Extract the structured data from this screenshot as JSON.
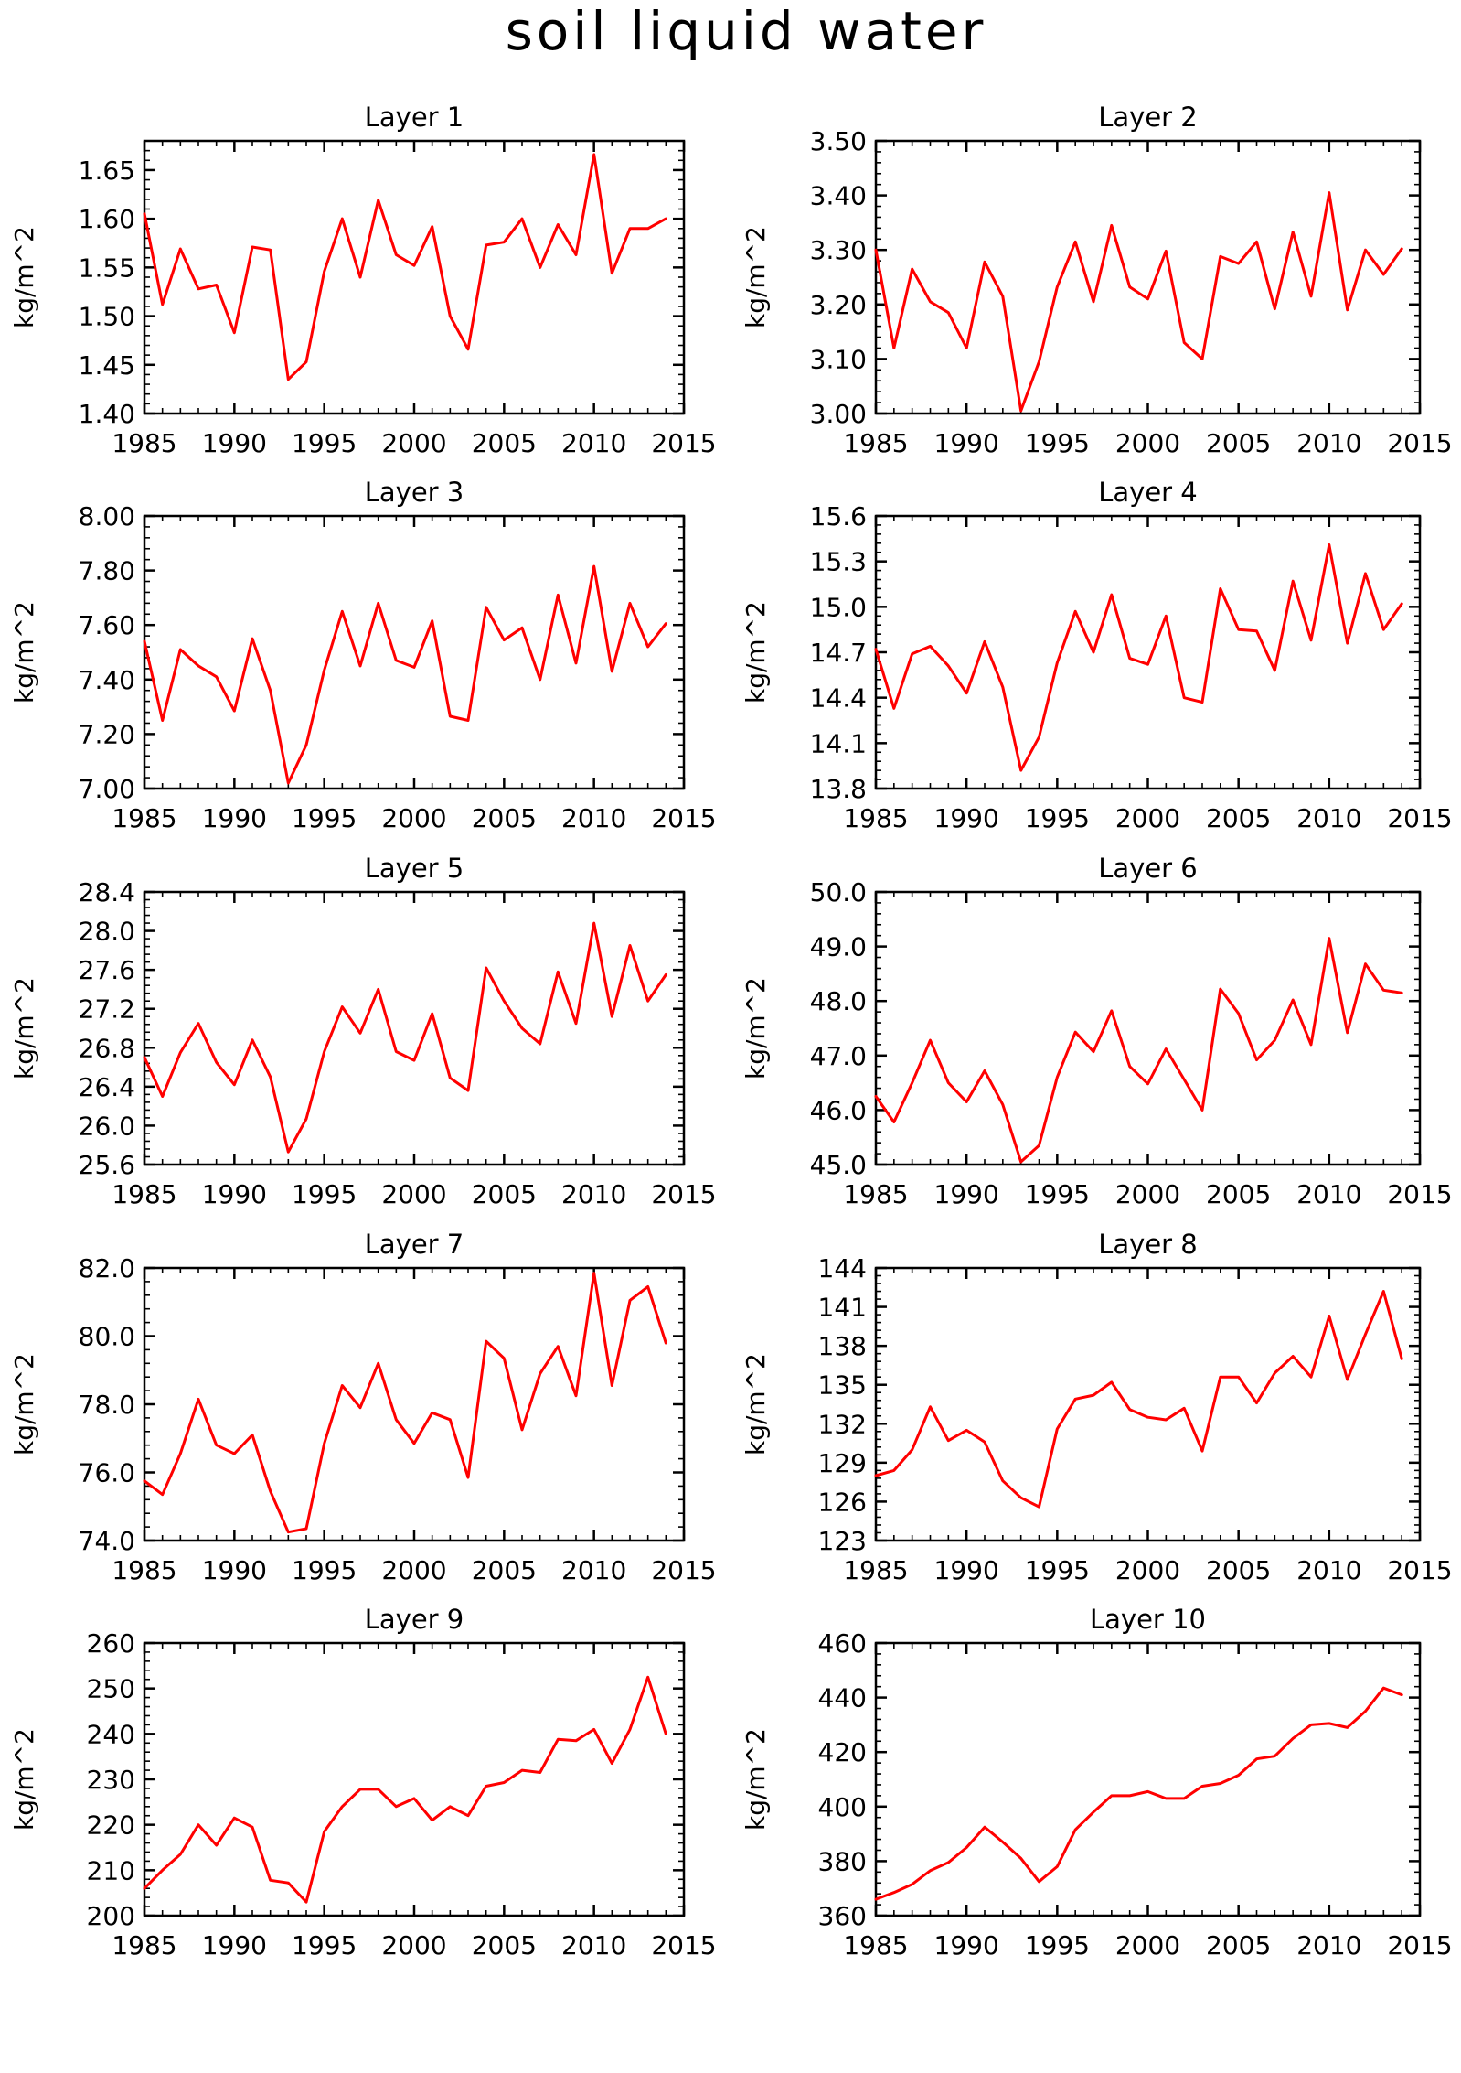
{
  "figure": {
    "title": "soil liquid water"
  },
  "chart_data": [
    {
      "type": "line",
      "title": "Layer 1",
      "ylabel": "kg/m^2",
      "xlim": [
        1985,
        2015
      ],
      "ylim": [
        1.4,
        1.68
      ],
      "xticks": [
        "1985",
        "1990",
        "1995",
        "2000",
        "2005",
        "2010",
        "2015"
      ],
      "yticks": [
        "1.40",
        "1.45",
        "1.50",
        "1.55",
        "1.60",
        "1.65"
      ],
      "x": [
        1985,
        1986,
        1987,
        1988,
        1989,
        1990,
        1991,
        1992,
        1993,
        1994,
        1995,
        1996,
        1997,
        1998,
        1999,
        2000,
        2001,
        2002,
        2003,
        2004,
        2005,
        2006,
        2007,
        2008,
        2009,
        2010,
        2011,
        2012,
        2013,
        2014
      ],
      "series": [
        {
          "values": [
            1.605,
            1.512,
            1.569,
            1.528,
            1.532,
            1.483,
            1.571,
            1.568,
            1.435,
            1.453,
            1.546,
            1.6,
            1.54,
            1.619,
            1.563,
            1.552,
            1.592,
            1.5,
            1.466,
            1.573,
            1.576,
            1.6,
            1.55,
            1.594,
            1.563,
            1.666,
            1.544,
            1.59,
            1.59,
            1.6
          ],
          "color": "#ff0000"
        }
      ]
    },
    {
      "type": "line",
      "title": "Layer 2",
      "ylabel": "kg/m^2",
      "xlim": [
        1985,
        2015
      ],
      "ylim": [
        3.0,
        3.5
      ],
      "xticks": [
        "1985",
        "1990",
        "1995",
        "2000",
        "2005",
        "2010",
        "2015"
      ],
      "yticks": [
        "3.00",
        "3.10",
        "3.20",
        "3.30",
        "3.40",
        "3.50"
      ],
      "x": [
        1985,
        1986,
        1987,
        1988,
        1989,
        1990,
        1991,
        1992,
        1993,
        1994,
        1995,
        1996,
        1997,
        1998,
        1999,
        2000,
        2001,
        2002,
        2003,
        2004,
        2005,
        2006,
        2007,
        2008,
        2009,
        2010,
        2011,
        2012,
        2013,
        2014
      ],
      "series": [
        {
          "values": [
            3.3,
            3.12,
            3.265,
            3.205,
            3.185,
            3.12,
            3.278,
            3.215,
            3.005,
            3.095,
            3.232,
            3.315,
            3.205,
            3.345,
            3.232,
            3.21,
            3.298,
            3.13,
            3.1,
            3.288,
            3.275,
            3.315,
            3.192,
            3.333,
            3.215,
            3.405,
            3.19,
            3.3,
            3.255,
            3.302
          ],
          "color": "#ff0000"
        }
      ]
    },
    {
      "type": "line",
      "title": "Layer 3",
      "ylabel": "kg/m^2",
      "xlim": [
        1985,
        2015
      ],
      "ylim": [
        7.0,
        8.0
      ],
      "xticks": [
        "1985",
        "1990",
        "1995",
        "2000",
        "2005",
        "2010",
        "2015"
      ],
      "yticks": [
        "7.00",
        "7.20",
        "7.40",
        "7.60",
        "7.80",
        "8.00"
      ],
      "x": [
        1985,
        1986,
        1987,
        1988,
        1989,
        1990,
        1991,
        1992,
        1993,
        1994,
        1995,
        1996,
        1997,
        1998,
        1999,
        2000,
        2001,
        2002,
        2003,
        2004,
        2005,
        2006,
        2007,
        2008,
        2009,
        2010,
        2011,
        2012,
        2013,
        2014
      ],
      "series": [
        {
          "values": [
            7.54,
            7.25,
            7.51,
            7.45,
            7.41,
            7.285,
            7.55,
            7.36,
            7.02,
            7.16,
            7.435,
            7.65,
            7.45,
            7.68,
            7.47,
            7.445,
            7.615,
            7.265,
            7.25,
            7.665,
            7.545,
            7.59,
            7.4,
            7.71,
            7.46,
            7.815,
            7.43,
            7.68,
            7.52,
            7.605
          ],
          "color": "#ff0000"
        }
      ]
    },
    {
      "type": "line",
      "title": "Layer 4",
      "ylabel": "kg/m^2",
      "xlim": [
        1985,
        2015
      ],
      "ylim": [
        13.8,
        15.6
      ],
      "xticks": [
        "1985",
        "1990",
        "1995",
        "2000",
        "2005",
        "2010",
        "2015"
      ],
      "yticks": [
        "13.8",
        "14.1",
        "14.4",
        "14.7",
        "15.0",
        "15.3",
        "15.6"
      ],
      "x": [
        1985,
        1986,
        1987,
        1988,
        1989,
        1990,
        1991,
        1992,
        1993,
        1994,
        1995,
        1996,
        1997,
        1998,
        1999,
        2000,
        2001,
        2002,
        2003,
        2004,
        2005,
        2006,
        2007,
        2008,
        2009,
        2010,
        2011,
        2012,
        2013,
        2014
      ],
      "series": [
        {
          "values": [
            14.72,
            14.33,
            14.69,
            14.74,
            14.61,
            14.43,
            14.77,
            14.47,
            13.92,
            14.14,
            14.63,
            14.97,
            14.7,
            15.08,
            14.66,
            14.62,
            14.94,
            14.4,
            14.37,
            15.12,
            14.85,
            14.84,
            14.58,
            15.17,
            14.78,
            15.41,
            14.76,
            15.22,
            14.85,
            15.02
          ],
          "color": "#ff0000"
        }
      ]
    },
    {
      "type": "line",
      "title": "Layer 5",
      "ylabel": "kg/m^2",
      "xlim": [
        1985,
        2015
      ],
      "ylim": [
        25.6,
        28.4
      ],
      "xticks": [
        "1985",
        "1990",
        "1995",
        "2000",
        "2005",
        "2010",
        "2015"
      ],
      "yticks": [
        "25.6",
        "26.0",
        "26.4",
        "26.8",
        "27.2",
        "27.6",
        "28.0",
        "28.4"
      ],
      "x": [
        1985,
        1986,
        1987,
        1988,
        1989,
        1990,
        1991,
        1992,
        1993,
        1994,
        1995,
        1996,
        1997,
        1998,
        1999,
        2000,
        2001,
        2002,
        2003,
        2004,
        2005,
        2006,
        2007,
        2008,
        2009,
        2010,
        2011,
        2012,
        2013,
        2014
      ],
      "series": [
        {
          "values": [
            26.7,
            26.3,
            26.75,
            27.05,
            26.65,
            26.42,
            26.88,
            26.5,
            25.73,
            26.07,
            26.76,
            27.22,
            26.95,
            27.4,
            26.76,
            26.67,
            27.15,
            26.49,
            26.36,
            27.62,
            27.28,
            27.0,
            26.84,
            27.58,
            27.05,
            28.08,
            27.12,
            27.85,
            27.28,
            27.55
          ],
          "color": "#ff0000"
        }
      ]
    },
    {
      "type": "line",
      "title": "Layer 6",
      "ylabel": "kg/m^2",
      "xlim": [
        1985,
        2015
      ],
      "ylim": [
        45.0,
        50.0
      ],
      "xticks": [
        "1985",
        "1990",
        "1995",
        "2000",
        "2005",
        "2010",
        "2015"
      ],
      "yticks": [
        "45.0",
        "46.0",
        "47.0",
        "48.0",
        "49.0",
        "50.0"
      ],
      "x": [
        1985,
        1986,
        1987,
        1988,
        1989,
        1990,
        1991,
        1992,
        1993,
        1994,
        1995,
        1996,
        1997,
        1998,
        1999,
        2000,
        2001,
        2002,
        2003,
        2004,
        2005,
        2006,
        2007,
        2008,
        2009,
        2010,
        2011,
        2012,
        2013,
        2014
      ],
      "series": [
        {
          "values": [
            46.25,
            45.78,
            46.5,
            47.28,
            46.5,
            46.15,
            46.72,
            46.1,
            45.05,
            45.35,
            46.6,
            47.43,
            47.07,
            47.82,
            46.8,
            46.48,
            47.12,
            46.56,
            46.0,
            48.22,
            47.77,
            46.92,
            47.28,
            48.02,
            47.2,
            49.15,
            47.42,
            48.68,
            48.2,
            48.15
          ],
          "color": "#ff0000"
        }
      ]
    },
    {
      "type": "line",
      "title": "Layer 7",
      "ylabel": "kg/m^2",
      "xlim": [
        1985,
        2015
      ],
      "ylim": [
        74.0,
        82.0
      ],
      "xticks": [
        "1985",
        "1990",
        "1995",
        "2000",
        "2005",
        "2010",
        "2015"
      ],
      "yticks": [
        "74.0",
        "76.0",
        "78.0",
        "80.0",
        "82.0"
      ],
      "x": [
        1985,
        1986,
        1987,
        1988,
        1989,
        1990,
        1991,
        1992,
        1993,
        1994,
        1995,
        1996,
        1997,
        1998,
        1999,
        2000,
        2001,
        2002,
        2003,
        2004,
        2005,
        2006,
        2007,
        2008,
        2009,
        2010,
        2011,
        2012,
        2013,
        2014
      ],
      "series": [
        {
          "values": [
            75.75,
            75.35,
            76.55,
            78.15,
            76.8,
            76.55,
            77.1,
            75.45,
            74.25,
            74.35,
            76.85,
            78.55,
            77.9,
            79.2,
            77.55,
            76.85,
            77.75,
            77.55,
            75.85,
            79.85,
            79.35,
            77.25,
            78.9,
            79.7,
            78.25,
            81.85,
            78.55,
            81.05,
            81.45,
            79.8
          ],
          "color": "#ff0000"
        }
      ]
    },
    {
      "type": "line",
      "title": "Layer 8",
      "ylabel": "kg/m^2",
      "xlim": [
        1985,
        2015
      ],
      "ylim": [
        123,
        144
      ],
      "xticks": [
        "1985",
        "1990",
        "1995",
        "2000",
        "2005",
        "2010",
        "2015"
      ],
      "yticks": [
        "123",
        "126",
        "129",
        "132",
        "135",
        "138",
        "141",
        "144"
      ],
      "x": [
        1985,
        1986,
        1987,
        1988,
        1989,
        1990,
        1991,
        1992,
        1993,
        1994,
        1995,
        1996,
        1997,
        1998,
        1999,
        2000,
        2001,
        2002,
        2003,
        2004,
        2005,
        2006,
        2007,
        2008,
        2009,
        2010,
        2011,
        2012,
        2013,
        2014
      ],
      "series": [
        {
          "values": [
            128.0,
            128.4,
            130.0,
            133.3,
            130.7,
            131.5,
            130.6,
            127.6,
            126.3,
            125.6,
            131.6,
            133.9,
            134.2,
            135.2,
            133.1,
            132.5,
            132.3,
            133.2,
            129.9,
            135.6,
            135.6,
            133.6,
            135.9,
            137.2,
            135.6,
            140.3,
            135.4,
            138.9,
            142.2,
            137.0
          ],
          "color": "#ff0000"
        }
      ]
    },
    {
      "type": "line",
      "title": "Layer 9",
      "ylabel": "kg/m^2",
      "xlim": [
        1985,
        2015
      ],
      "ylim": [
        200,
        260
      ],
      "xticks": [
        "1985",
        "1990",
        "1995",
        "2000",
        "2005",
        "2010",
        "2015"
      ],
      "yticks": [
        "200",
        "210",
        "220",
        "230",
        "240",
        "250",
        "260"
      ],
      "x": [
        1985,
        1986,
        1987,
        1988,
        1989,
        1990,
        1991,
        1992,
        1993,
        1994,
        1995,
        1996,
        1997,
        1998,
        1999,
        2000,
        2001,
        2002,
        2003,
        2004,
        2005,
        2006,
        2007,
        2008,
        2009,
        2010,
        2011,
        2012,
        2013,
        2014
      ],
      "series": [
        {
          "values": [
            206.0,
            210.0,
            213.5,
            220.0,
            215.5,
            221.5,
            219.5,
            207.8,
            207.2,
            203.0,
            218.5,
            224.0,
            227.8,
            227.8,
            224.0,
            225.8,
            221.0,
            224.0,
            222.0,
            228.5,
            229.3,
            232.0,
            231.5,
            238.8,
            238.5,
            241.0,
            233.5,
            241.0,
            252.5,
            240.0
          ],
          "color": "#ff0000"
        }
      ]
    },
    {
      "type": "line",
      "title": "Layer 10",
      "ylabel": "kg/m^2",
      "xlim": [
        1985,
        2015
      ],
      "ylim": [
        360,
        460
      ],
      "xticks": [
        "1985",
        "1990",
        "1995",
        "2000",
        "2005",
        "2010",
        "2015"
      ],
      "yticks": [
        "360",
        "380",
        "400",
        "420",
        "440",
        "460"
      ],
      "x": [
        1985,
        1986,
        1987,
        1988,
        1989,
        1990,
        1991,
        1992,
        1993,
        1994,
        1995,
        1996,
        1997,
        1998,
        1999,
        2000,
        2001,
        2002,
        2003,
        2004,
        2005,
        2006,
        2007,
        2008,
        2009,
        2010,
        2011,
        2012,
        2013,
        2014
      ],
      "series": [
        {
          "values": [
            366.0,
            368.5,
            371.5,
            376.5,
            379.5,
            385.0,
            392.5,
            387.0,
            381.0,
            372.5,
            378.0,
            391.5,
            398.0,
            404.0,
            404.0,
            405.5,
            403.0,
            403.0,
            407.5,
            408.5,
            411.5,
            417.5,
            418.5,
            425.0,
            430.0,
            430.5,
            429.0,
            435.0,
            443.5,
            441.0
          ],
          "color": "#ff0000"
        }
      ]
    }
  ]
}
